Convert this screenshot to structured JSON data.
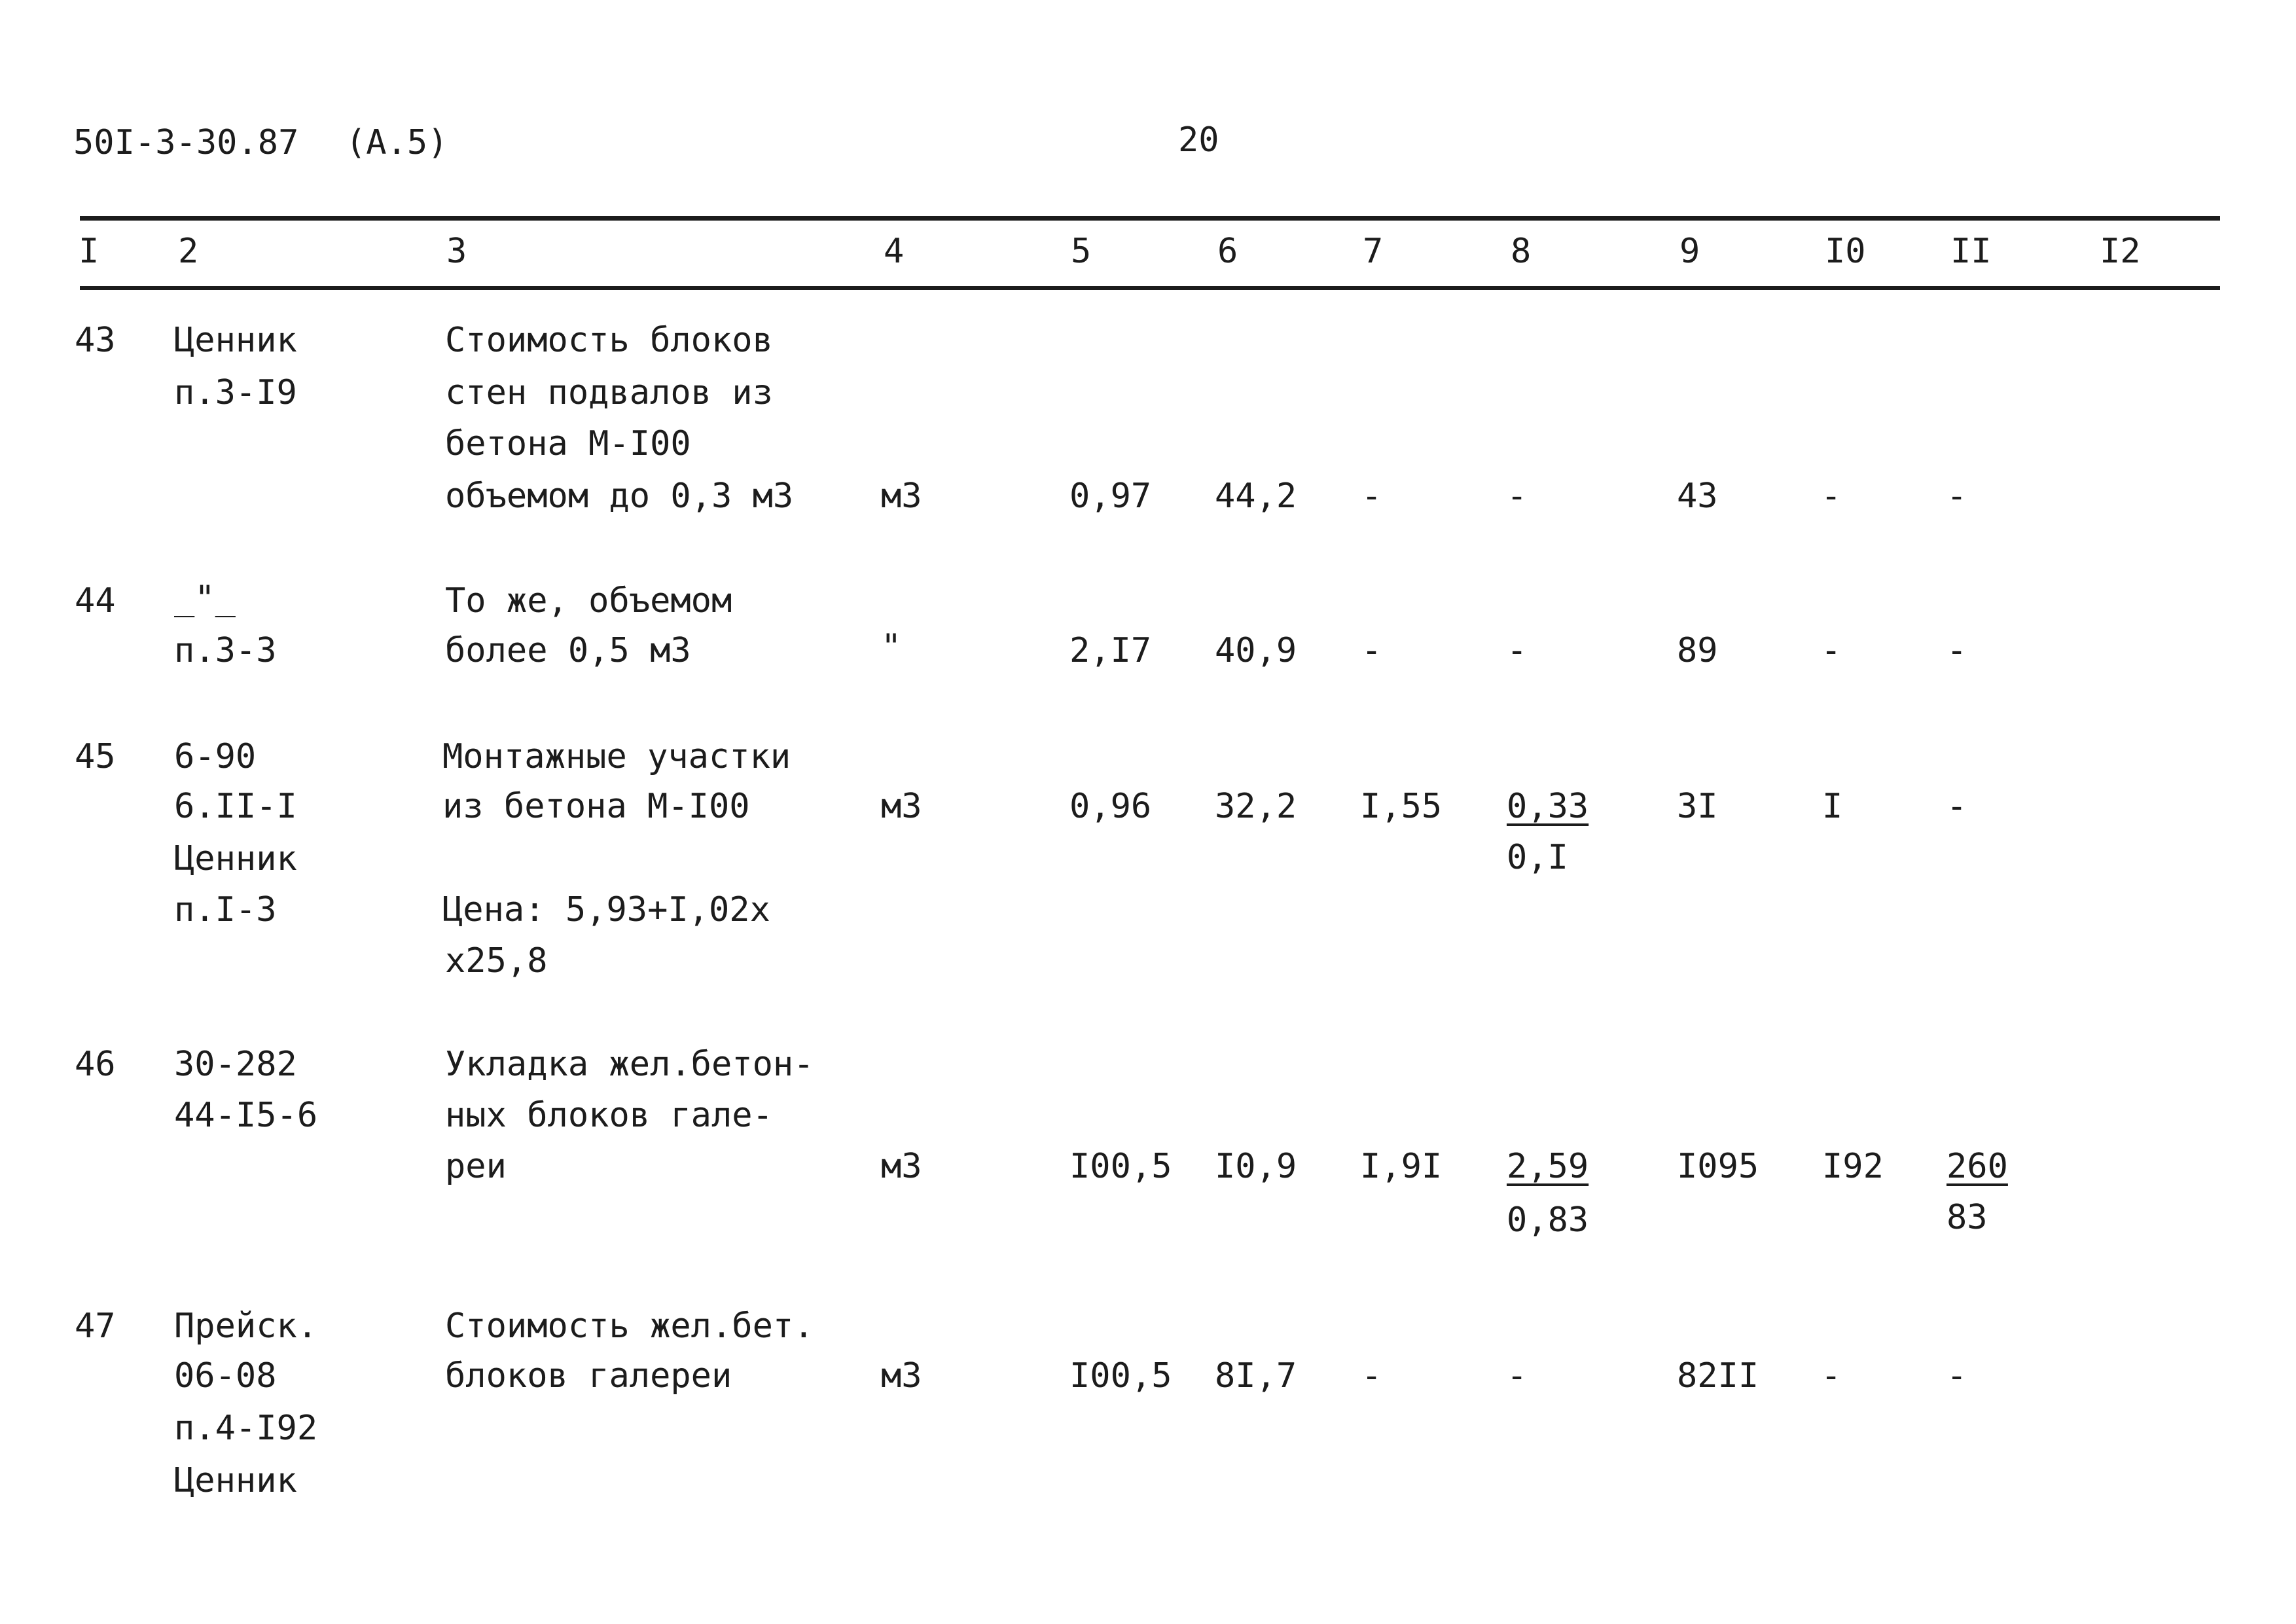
{
  "header": {
    "doc_code": "50I-3-30.87",
    "doc_part": "(А.5)",
    "page_number": "20"
  },
  "columns": [
    "I",
    "2",
    "3",
    "4",
    "5",
    "6",
    "7",
    "8",
    "9",
    "I0",
    "II",
    "I2"
  ],
  "rows": [
    {
      "num": "43",
      "basis": [
        "Ценник",
        "п.3-I9"
      ],
      "name": [
        "Стоимость блоков",
        "стен подвалов из",
        "бетона М-I00",
        "объемом до 0,3 м3"
      ],
      "unit": "м3",
      "qty": "0,97",
      "price": "44,2",
      "c7": "-",
      "c8": "-",
      "c9": "43",
      "c10": "-",
      "c11": "-"
    },
    {
      "num": "44",
      "basis": [
        "_\"_",
        "п.3-3"
      ],
      "name": [
        "То же, объемом",
        "более 0,5 м3"
      ],
      "unit": "\"",
      "qty": "2,I7",
      "price": "40,9",
      "c7": "-",
      "c8": "-",
      "c9": "89",
      "c10": "-",
      "c11": "-"
    },
    {
      "num": "45",
      "basis": [
        "6-90",
        "6.II-I",
        "Ценник",
        "п.I-3"
      ],
      "name": [
        "Монтажные участки",
        "из бетона М-I00"
      ],
      "note": [
        "Цена: 5,93+I,02х",
        "х25,8"
      ],
      "unit": "м3",
      "qty": "0,96",
      "price": "32,2",
      "c7": "I,55",
      "c8_top": "0,33",
      "c8_bottom": "0,I",
      "c9": "3I",
      "c10": "I",
      "c11": "-"
    },
    {
      "num": "46",
      "basis": [
        "30-282",
        "44-I5-6"
      ],
      "name": [
        "Укладка жел.бетон-",
        "ных блоков гале-",
        "реи"
      ],
      "unit": "м3",
      "qty": "I00,5",
      "price": "I0,9",
      "c7": "I,9I",
      "c8_top": "2,59",
      "c8_bottom": "0,83",
      "c9": "I095",
      "c10": "I92",
      "c11_top": "260",
      "c11_bottom": "83"
    },
    {
      "num": "47",
      "basis": [
        "Прейск.",
        "06-08",
        "п.4-I92",
        "Ценник"
      ],
      "name": [
        "Стоимость жел.бет.",
        "блоков галереи"
      ],
      "unit": "м3",
      "qty": "I00,5",
      "price": "8I,7",
      "c7": "-",
      "c8": "-",
      "c9": "82II",
      "c10": "-",
      "c11": "-"
    }
  ]
}
